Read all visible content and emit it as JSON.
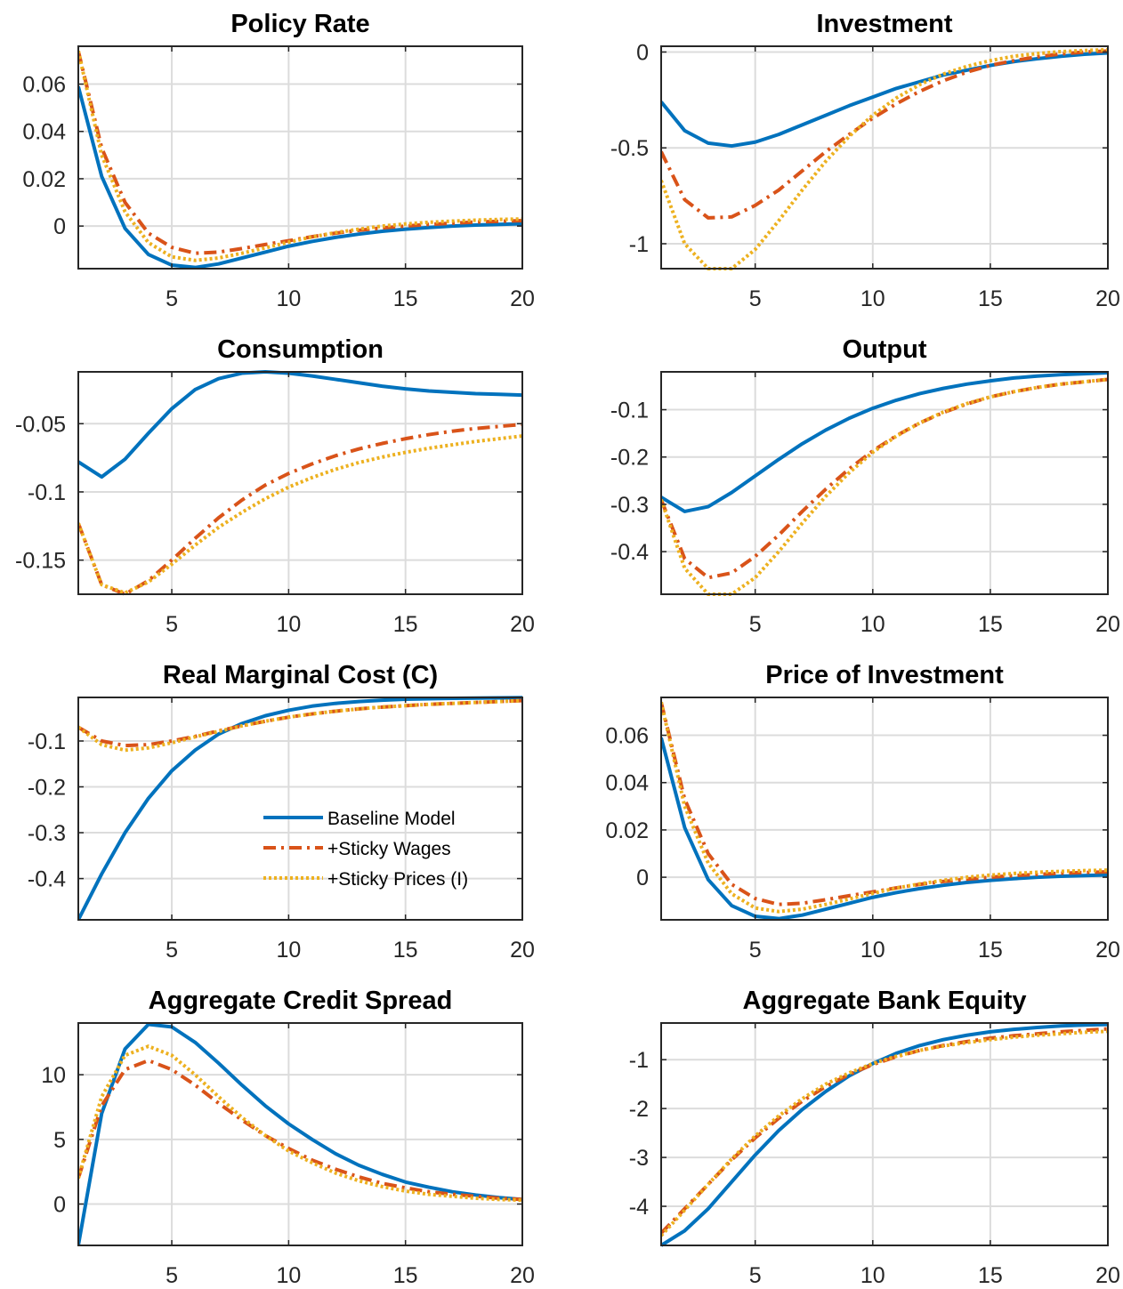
{
  "colors": {
    "baseline": "#0072BD",
    "sticky_wages": "#D95319",
    "sticky_prices": "#EDB120"
  },
  "legend": {
    "baseline": "Baseline Model",
    "sticky_wages": "+Sticky Wages",
    "sticky_prices": "+Sticky Prices (I)"
  },
  "chart_data": [
    {
      "type": "line",
      "title": "Policy Rate",
      "xlim": [
        1,
        20
      ],
      "ylim": [
        -0.018,
        0.076
      ],
      "xticks": [
        5,
        10,
        15,
        20
      ],
      "yticks": [
        0,
        0.02,
        0.04,
        0.06
      ],
      "ytick_labels": [
        "0",
        "0.02",
        "0.04",
        "0.06"
      ],
      "grid": true,
      "x": [
        1,
        2,
        3,
        4,
        5,
        6,
        7,
        8,
        9,
        10,
        11,
        12,
        13,
        14,
        15,
        16,
        17,
        18,
        19,
        20
      ],
      "series": [
        {
          "name": "Baseline Model",
          "key": "baseline",
          "style": "solid",
          "values": [
            0.059,
            0.021,
            -0.001,
            -0.012,
            -0.0165,
            -0.0175,
            -0.016,
            -0.0135,
            -0.011,
            -0.0085,
            -0.0065,
            -0.0048,
            -0.0034,
            -0.0022,
            -0.0013,
            -0.0006,
            0,
            0.0004,
            0.0007,
            0.001
          ]
        },
        {
          "name": "+Sticky Wages",
          "key": "sticky_wages",
          "style": "dashdot",
          "values": [
            0.074,
            0.033,
            0.01,
            -0.003,
            -0.009,
            -0.0115,
            -0.011,
            -0.0095,
            -0.0078,
            -0.0062,
            -0.0045,
            -0.003,
            -0.0018,
            -0.0008,
            0,
            0.0007,
            0.0012,
            0.0017,
            0.002,
            0.0023
          ]
        },
        {
          "name": "+Sticky Prices (I)",
          "key": "sticky_prices",
          "style": "dotted",
          "values": [
            0.074,
            0.03,
            0.006,
            -0.007,
            -0.013,
            -0.0145,
            -0.0135,
            -0.0115,
            -0.0092,
            -0.0068,
            -0.0046,
            -0.0028,
            -0.0013,
            0,
            0.0009,
            0.0016,
            0.0021,
            0.0025,
            0.0028,
            0.003
          ]
        }
      ]
    },
    {
      "type": "line",
      "title": "Investment",
      "xlim": [
        1,
        20
      ],
      "ylim": [
        -1.13,
        0.03
      ],
      "xticks": [
        5,
        10,
        15,
        20
      ],
      "yticks": [
        -1,
        -0.5,
        0
      ],
      "ytick_labels": [
        "-1",
        "-0.5",
        "0"
      ],
      "grid": true,
      "x": [
        1,
        2,
        3,
        4,
        5,
        6,
        7,
        8,
        9,
        10,
        11,
        12,
        13,
        14,
        15,
        16,
        17,
        18,
        19,
        20
      ],
      "series": [
        {
          "name": "Baseline Model",
          "key": "baseline",
          "style": "solid",
          "values": [
            -0.26,
            -0.41,
            -0.475,
            -0.49,
            -0.47,
            -0.43,
            -0.38,
            -0.33,
            -0.28,
            -0.235,
            -0.19,
            -0.155,
            -0.12,
            -0.095,
            -0.07,
            -0.05,
            -0.035,
            -0.022,
            -0.012,
            -0.005
          ]
        },
        {
          "name": "+Sticky Wages",
          "key": "sticky_wages",
          "style": "dashdot",
          "values": [
            -0.52,
            -0.77,
            -0.865,
            -0.86,
            -0.8,
            -0.72,
            -0.62,
            -0.52,
            -0.43,
            -0.345,
            -0.27,
            -0.205,
            -0.15,
            -0.105,
            -0.07,
            -0.045,
            -0.025,
            -0.01,
            0,
            0.005
          ]
        },
        {
          "name": "+Sticky Prices (I)",
          "key": "sticky_prices",
          "style": "dotted",
          "values": [
            -0.67,
            -1.0,
            -1.13,
            -1.13,
            -1.03,
            -0.88,
            -0.72,
            -0.57,
            -0.44,
            -0.33,
            -0.24,
            -0.17,
            -0.115,
            -0.075,
            -0.045,
            -0.022,
            -0.008,
            0.002,
            0.008,
            0.012
          ]
        }
      ]
    },
    {
      "type": "line",
      "title": "Consumption",
      "xlim": [
        1,
        20
      ],
      "ylim": [
        -0.175,
        -0.012
      ],
      "xticks": [
        5,
        10,
        15,
        20
      ],
      "yticks": [
        -0.15,
        -0.1,
        -0.05
      ],
      "ytick_labels": [
        "-0.15",
        "-0.1",
        "-0.05"
      ],
      "grid": true,
      "x": [
        1,
        2,
        3,
        4,
        5,
        6,
        7,
        8,
        9,
        10,
        11,
        12,
        13,
        14,
        15,
        16,
        17,
        18,
        19,
        20
      ],
      "series": [
        {
          "name": "Baseline Model",
          "key": "baseline",
          "style": "solid",
          "values": [
            -0.078,
            -0.089,
            -0.076,
            -0.057,
            -0.039,
            -0.025,
            -0.017,
            -0.013,
            -0.012,
            -0.013,
            -0.015,
            -0.0175,
            -0.02,
            -0.0225,
            -0.0245,
            -0.026,
            -0.027,
            -0.028,
            -0.0285,
            -0.029
          ]
        },
        {
          "name": "+Sticky Wages",
          "key": "sticky_wages",
          "style": "dashdot",
          "values": [
            -0.123,
            -0.168,
            -0.175,
            -0.165,
            -0.15,
            -0.134,
            -0.119,
            -0.106,
            -0.095,
            -0.0865,
            -0.0795,
            -0.0735,
            -0.0685,
            -0.0645,
            -0.061,
            -0.058,
            -0.0555,
            -0.0535,
            -0.052,
            -0.0505
          ]
        },
        {
          "name": "+Sticky Prices (I)",
          "key": "sticky_prices",
          "style": "dotted",
          "values": [
            -0.123,
            -0.168,
            -0.174,
            -0.166,
            -0.153,
            -0.139,
            -0.126,
            -0.115,
            -0.105,
            -0.0965,
            -0.0895,
            -0.0835,
            -0.0785,
            -0.0745,
            -0.071,
            -0.068,
            -0.0655,
            -0.063,
            -0.061,
            -0.059
          ]
        }
      ]
    },
    {
      "type": "line",
      "title": "Output",
      "xlim": [
        1,
        20
      ],
      "ylim": [
        -0.49,
        -0.02
      ],
      "xticks": [
        5,
        10,
        15,
        20
      ],
      "yticks": [
        -0.4,
        -0.3,
        -0.2,
        -0.1
      ],
      "ytick_labels": [
        "-0.4",
        "-0.3",
        "-0.2",
        "-0.1"
      ],
      "grid": true,
      "x": [
        1,
        2,
        3,
        4,
        5,
        6,
        7,
        8,
        9,
        10,
        11,
        12,
        13,
        14,
        15,
        16,
        17,
        18,
        19,
        20
      ],
      "series": [
        {
          "name": "Baseline Model",
          "key": "baseline",
          "style": "solid",
          "values": [
            -0.285,
            -0.315,
            -0.305,
            -0.275,
            -0.24,
            -0.205,
            -0.172,
            -0.143,
            -0.118,
            -0.097,
            -0.08,
            -0.066,
            -0.055,
            -0.046,
            -0.039,
            -0.033,
            -0.029,
            -0.026,
            -0.024,
            -0.022
          ]
        },
        {
          "name": "+Sticky Wages",
          "key": "sticky_wages",
          "style": "dashdot",
          "values": [
            -0.29,
            -0.415,
            -0.455,
            -0.445,
            -0.41,
            -0.365,
            -0.315,
            -0.268,
            -0.225,
            -0.187,
            -0.155,
            -0.128,
            -0.106,
            -0.088,
            -0.073,
            -0.062,
            -0.053,
            -0.046,
            -0.041,
            -0.036
          ]
        },
        {
          "name": "+Sticky Prices (I)",
          "key": "sticky_prices",
          "style": "dotted",
          "values": [
            -0.29,
            -0.435,
            -0.49,
            -0.49,
            -0.455,
            -0.4,
            -0.34,
            -0.283,
            -0.233,
            -0.19,
            -0.156,
            -0.128,
            -0.105,
            -0.087,
            -0.073,
            -0.062,
            -0.053,
            -0.046,
            -0.041,
            -0.036
          ]
        }
      ]
    },
    {
      "type": "line",
      "title": "Real Marginal Cost (C)",
      "xlim": [
        1,
        20
      ],
      "ylim": [
        -0.49,
        -0.005
      ],
      "xticks": [
        5,
        10,
        15,
        20
      ],
      "yticks": [
        -0.4,
        -0.3,
        -0.2,
        -0.1
      ],
      "ytick_labels": [
        "-0.4",
        "-0.3",
        "-0.2",
        "-0.1"
      ],
      "grid": true,
      "legend": "bottom-right",
      "x": [
        1,
        2,
        3,
        4,
        5,
        6,
        7,
        8,
        9,
        10,
        11,
        12,
        13,
        14,
        15,
        16,
        17,
        18,
        19,
        20
      ],
      "series": [
        {
          "name": "Baseline Model",
          "key": "baseline",
          "style": "solid",
          "values": [
            -0.49,
            -0.39,
            -0.3,
            -0.225,
            -0.165,
            -0.12,
            -0.085,
            -0.062,
            -0.045,
            -0.033,
            -0.024,
            -0.018,
            -0.014,
            -0.011,
            -0.009,
            -0.008,
            -0.007,
            -0.0065,
            -0.006,
            -0.0055
          ]
        },
        {
          "name": "+Sticky Wages",
          "key": "sticky_wages",
          "style": "dashdot",
          "values": [
            -0.07,
            -0.1,
            -0.11,
            -0.108,
            -0.1,
            -0.09,
            -0.078,
            -0.067,
            -0.057,
            -0.048,
            -0.041,
            -0.035,
            -0.03,
            -0.026,
            -0.023,
            -0.02,
            -0.018,
            -0.016,
            -0.014,
            -0.012
          ]
        },
        {
          "name": "+Sticky Prices (I)",
          "key": "sticky_prices",
          "style": "dotted",
          "values": [
            -0.07,
            -0.108,
            -0.12,
            -0.115,
            -0.104,
            -0.091,
            -0.079,
            -0.067,
            -0.057,
            -0.048,
            -0.041,
            -0.035,
            -0.03,
            -0.026,
            -0.023,
            -0.02,
            -0.018,
            -0.016,
            -0.014,
            -0.012
          ]
        }
      ]
    },
    {
      "type": "line",
      "title": "Price of Investment",
      "xlim": [
        1,
        20
      ],
      "ylim": [
        -0.018,
        0.076
      ],
      "xticks": [
        5,
        10,
        15,
        20
      ],
      "yticks": [
        0,
        0.02,
        0.04,
        0.06
      ],
      "ytick_labels": [
        "0",
        "0.02",
        "0.04",
        "0.06"
      ],
      "grid": true,
      "x": [
        1,
        2,
        3,
        4,
        5,
        6,
        7,
        8,
        9,
        10,
        11,
        12,
        13,
        14,
        15,
        16,
        17,
        18,
        19,
        20
      ],
      "series": [
        {
          "name": "Baseline Model",
          "key": "baseline",
          "style": "solid",
          "values": [
            0.059,
            0.021,
            -0.001,
            -0.012,
            -0.0165,
            -0.0175,
            -0.016,
            -0.0135,
            -0.011,
            -0.0085,
            -0.0065,
            -0.0048,
            -0.0034,
            -0.0022,
            -0.0013,
            -0.0006,
            0,
            0.0004,
            0.0007,
            0.001
          ]
        },
        {
          "name": "+Sticky Wages",
          "key": "sticky_wages",
          "style": "dashdot",
          "values": [
            0.074,
            0.033,
            0.01,
            -0.003,
            -0.009,
            -0.0115,
            -0.011,
            -0.0095,
            -0.0078,
            -0.0062,
            -0.0045,
            -0.003,
            -0.0018,
            -0.0008,
            0,
            0.0007,
            0.0012,
            0.0017,
            0.002,
            0.0023
          ]
        },
        {
          "name": "+Sticky Prices (I)",
          "key": "sticky_prices",
          "style": "dotted",
          "values": [
            0.074,
            0.03,
            0.006,
            -0.007,
            -0.013,
            -0.0145,
            -0.0135,
            -0.0115,
            -0.0092,
            -0.0068,
            -0.0046,
            -0.0028,
            -0.0013,
            0,
            0.0009,
            0.0016,
            0.0021,
            0.0025,
            0.0028,
            0.003
          ]
        }
      ]
    },
    {
      "type": "line",
      "title": "Aggregate Credit Spread",
      "xlim": [
        1,
        20
      ],
      "ylim": [
        -3.2,
        14
      ],
      "xticks": [
        5,
        10,
        15,
        20
      ],
      "yticks": [
        0,
        5,
        10
      ],
      "ytick_labels": [
        "0",
        "5",
        "10"
      ],
      "grid": true,
      "x": [
        1,
        2,
        3,
        4,
        5,
        6,
        7,
        8,
        9,
        10,
        11,
        12,
        13,
        14,
        15,
        16,
        17,
        18,
        19,
        20
      ],
      "series": [
        {
          "name": "Baseline Model",
          "key": "baseline",
          "style": "solid",
          "values": [
            -3.2,
            7.0,
            12.0,
            13.9,
            13.7,
            12.5,
            10.9,
            9.2,
            7.6,
            6.2,
            5.0,
            3.9,
            3.0,
            2.3,
            1.7,
            1.3,
            0.95,
            0.7,
            0.5,
            0.35
          ]
        },
        {
          "name": "+Sticky Wages",
          "key": "sticky_wages",
          "style": "dashdot",
          "values": [
            2.0,
            7.6,
            10.4,
            11.1,
            10.4,
            9.2,
            7.8,
            6.5,
            5.3,
            4.3,
            3.4,
            2.7,
            2.1,
            1.6,
            1.25,
            0.95,
            0.75,
            0.6,
            0.45,
            0.35
          ]
        },
        {
          "name": "+Sticky Prices (I)",
          "key": "sticky_prices",
          "style": "dotted",
          "values": [
            2.0,
            8.3,
            11.5,
            12.2,
            11.5,
            10.0,
            8.3,
            6.7,
            5.3,
            4.1,
            3.2,
            2.4,
            1.8,
            1.35,
            1.0,
            0.75,
            0.6,
            0.45,
            0.35,
            0.3
          ]
        }
      ]
    },
    {
      "type": "line",
      "title": "Aggregate Bank Equity",
      "xlim": [
        1,
        20
      ],
      "ylim": [
        -4.8,
        -0.25
      ],
      "xticks": [
        5,
        10,
        15,
        20
      ],
      "yticks": [
        -4,
        -3,
        -2,
        -1
      ],
      "ytick_labels": [
        "-4",
        "-3",
        "-2",
        "-1"
      ],
      "grid": true,
      "x": [
        1,
        2,
        3,
        4,
        5,
        6,
        7,
        8,
        9,
        10,
        11,
        12,
        13,
        14,
        15,
        16,
        17,
        18,
        19,
        20
      ],
      "series": [
        {
          "name": "Baseline Model",
          "key": "baseline",
          "style": "solid",
          "values": [
            -4.8,
            -4.5,
            -4.05,
            -3.5,
            -2.95,
            -2.45,
            -2.02,
            -1.65,
            -1.33,
            -1.08,
            -0.87,
            -0.71,
            -0.59,
            -0.5,
            -0.43,
            -0.38,
            -0.34,
            -0.31,
            -0.29,
            -0.28
          ]
        },
        {
          "name": "+Sticky Wages",
          "key": "sticky_wages",
          "style": "dashdot",
          "values": [
            -4.55,
            -4.05,
            -3.55,
            -3.05,
            -2.6,
            -2.2,
            -1.85,
            -1.55,
            -1.3,
            -1.1,
            -0.94,
            -0.81,
            -0.71,
            -0.63,
            -0.56,
            -0.51,
            -0.47,
            -0.43,
            -0.4,
            -0.37
          ]
        },
        {
          "name": "+Sticky Prices (I)",
          "key": "sticky_prices",
          "style": "dotted",
          "values": [
            -4.6,
            -4.08,
            -3.55,
            -3.03,
            -2.56,
            -2.15,
            -1.8,
            -1.5,
            -1.27,
            -1.08,
            -0.93,
            -0.81,
            -0.72,
            -0.65,
            -0.59,
            -0.54,
            -0.5,
            -0.47,
            -0.44,
            -0.42
          ]
        }
      ]
    }
  ]
}
